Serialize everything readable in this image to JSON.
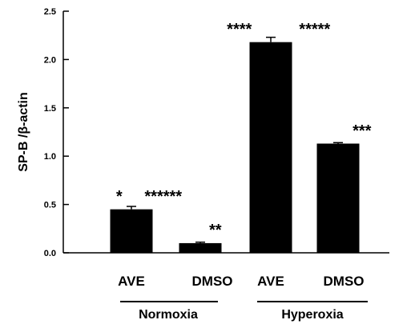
{
  "chart_data": {
    "type": "bar",
    "ylabel": "SP-B /β-actin",
    "ylim": [
      0,
      2.5
    ],
    "yticks": [
      "0.0",
      "0.5",
      "1.0",
      "1.5",
      "2.0",
      "2.5"
    ],
    "categories": [
      "AVE",
      "DMSO",
      "AVE",
      "DMSO"
    ],
    "groups": [
      "Normoxia",
      "Hyperoxia"
    ],
    "values": [
      0.45,
      0.1,
      2.18,
      1.13
    ],
    "errors": [
      0.03,
      0.01,
      0.05,
      0.01
    ],
    "bar_color": "#000000",
    "annotations": [
      {
        "text": "*",
        "category_index": 0,
        "y": 0.58
      },
      {
        "text": "******",
        "category_index": 0,
        "y": 0.58
      },
      {
        "text": "**",
        "category_index": 1,
        "y": 0.23
      },
      {
        "text": "****",
        "category_index": 2,
        "y": 2.31
      },
      {
        "text": "*****",
        "category_index": 2,
        "y": 2.31
      },
      {
        "text": "***",
        "category_index": 3,
        "y": 1.26
      }
    ]
  }
}
